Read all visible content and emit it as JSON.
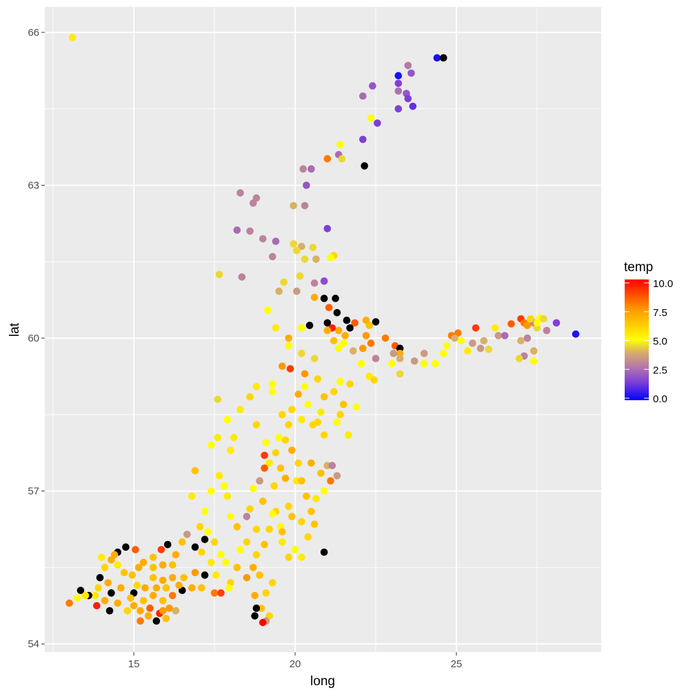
{
  "chart_data": {
    "type": "scatter",
    "xlabel": "long",
    "ylabel": "lat",
    "xlim": [
      12.24,
      29.49
    ],
    "ylim": [
      53.84,
      66.5
    ],
    "x_ticks": [
      15,
      20,
      25
    ],
    "x_tick_labels": [
      "15",
      "20",
      "25"
    ],
    "y_ticks": [
      54,
      57,
      60,
      63,
      66
    ],
    "y_tick_labels": [
      "54",
      "57",
      "60",
      "63",
      "66"
    ],
    "grid": true,
    "legend": {
      "title": "temp",
      "placement": "right",
      "range": [
        0,
        10
      ],
      "ticks": [
        0,
        2.5,
        5,
        7.5,
        10
      ],
      "tick_labels": [
        "0.0",
        "2.5",
        "5.0",
        "7.5",
        "10.0"
      ],
      "color_stops": [
        {
          "value": 0,
          "color": "#0000FF"
        },
        {
          "value": 1.5,
          "color": "#7F3FD6"
        },
        {
          "value": 2.8,
          "color": "#B57AA8"
        },
        {
          "value": 4,
          "color": "#D8B066"
        },
        {
          "value": 5,
          "color": "#FFFF00"
        },
        {
          "value": 7.5,
          "color": "#FF9900"
        },
        {
          "value": 10,
          "color": "#FF0000"
        }
      ],
      "na_color": "#000000"
    },
    "point_fields": [
      "long",
      "lat",
      "temp"
    ],
    "points": [
      [
        13.1,
        65.9,
        5.5
      ],
      [
        24.4,
        65.5,
        0.3
      ],
      [
        24.6,
        65.5,
        null
      ],
      [
        23.5,
        65.35,
        2.8
      ],
      [
        23.6,
        65.2,
        2
      ],
      [
        23.2,
        65.15,
        0.3
      ],
      [
        23.2,
        65.0,
        1.5
      ],
      [
        23.2,
        64.85,
        2.6
      ],
      [
        23.45,
        64.8,
        2
      ],
      [
        23.5,
        64.7,
        1.5
      ],
      [
        23.65,
        64.55,
        1.2
      ],
      [
        23.2,
        64.5,
        1.5
      ],
      [
        22.4,
        64.95,
        2
      ],
      [
        22.1,
        64.75,
        2.5
      ],
      [
        22.35,
        64.32,
        5
      ],
      [
        22.55,
        64.22,
        1.5
      ],
      [
        22.1,
        63.9,
        1.5
      ],
      [
        21.4,
        63.8,
        5
      ],
      [
        21.35,
        63.6,
        2.5
      ],
      [
        21.45,
        63.52,
        4.5
      ],
      [
        21.0,
        63.52,
        8
      ],
      [
        22.15,
        63.38,
        null
      ],
      [
        20.25,
        63.32,
        3
      ],
      [
        20.5,
        63.32,
        2.5
      ],
      [
        20.35,
        63.0,
        2
      ],
      [
        18.3,
        62.85,
        3
      ],
      [
        18.8,
        62.75,
        3
      ],
      [
        18.7,
        62.65,
        3
      ],
      [
        19.95,
        62.6,
        4
      ],
      [
        20.3,
        62.6,
        3
      ],
      [
        18.2,
        62.12,
        2.5
      ],
      [
        18.6,
        62.1,
        3
      ],
      [
        21.0,
        62.15,
        1.5
      ],
      [
        19.0,
        61.95,
        3
      ],
      [
        19.4,
        61.9,
        2.5
      ],
      [
        19.95,
        61.85,
        4.5
      ],
      [
        20.2,
        61.8,
        4
      ],
      [
        20.55,
        61.78,
        4.5
      ],
      [
        20.05,
        61.72,
        4.5
      ],
      [
        20.3,
        61.55,
        4.5
      ],
      [
        20.65,
        61.55,
        4
      ],
      [
        21.2,
        61.62,
        6
      ],
      [
        21.1,
        61.58,
        5
      ],
      [
        19.3,
        61.6,
        3
      ],
      [
        17.65,
        61.25,
        4.5
      ],
      [
        18.35,
        61.2,
        3
      ],
      [
        20.15,
        61.22,
        4.5
      ],
      [
        19.65,
        61.1,
        4.5
      ],
      [
        19.5,
        60.92,
        4
      ],
      [
        20.05,
        60.92,
        3.5
      ],
      [
        20.6,
        61.08,
        3
      ],
      [
        20.9,
        61.12,
        1.8
      ],
      [
        20.6,
        60.8,
        7
      ],
      [
        20.9,
        60.78,
        null
      ],
      [
        21.05,
        60.6,
        8.5
      ],
      [
        21.25,
        60.78,
        null
      ],
      [
        21.3,
        60.5,
        null
      ],
      [
        21.0,
        60.3,
        null
      ],
      [
        21.15,
        60.2,
        9.5
      ],
      [
        20.45,
        60.25,
        null
      ],
      [
        21.6,
        60.35,
        null
      ],
      [
        21.85,
        60.3,
        8.5
      ],
      [
        22.5,
        60.32,
        null
      ],
      [
        21.7,
        60.2,
        null
      ],
      [
        21.35,
        60.15,
        7
      ],
      [
        21.5,
        59.9,
        5
      ],
      [
        21.0,
        60.15,
        7
      ],
      [
        21.2,
        59.95,
        6.5
      ],
      [
        21.55,
        60.05,
        7
      ],
      [
        22.2,
        60.35,
        7
      ],
      [
        22.3,
        60.25,
        6.5
      ],
      [
        22.2,
        60.05,
        7.5
      ],
      [
        22.35,
        59.9,
        8
      ],
      [
        22.1,
        59.8,
        7.5
      ],
      [
        22.5,
        59.6,
        3
      ],
      [
        22.8,
        60.0,
        8
      ],
      [
        23.1,
        59.85,
        8.5
      ],
      [
        23.25,
        59.8,
        null
      ],
      [
        23.25,
        59.7,
        7
      ],
      [
        23.05,
        59.7,
        3.5
      ],
      [
        23.25,
        59.6,
        4
      ],
      [
        23.0,
        59.5,
        5
      ],
      [
        23.7,
        59.55,
        3.5
      ],
      [
        24.0,
        59.7,
        3.5
      ],
      [
        24.35,
        59.5,
        5
      ],
      [
        24.0,
        59.5,
        5
      ],
      [
        23.25,
        59.3,
        4.5
      ],
      [
        24.6,
        59.7,
        5
      ],
      [
        24.7,
        59.85,
        5
      ],
      [
        24.85,
        60.05,
        8
      ],
      [
        25.05,
        60.1,
        8
      ],
      [
        24.95,
        60.0,
        4
      ],
      [
        25.15,
        59.95,
        5
      ],
      [
        25.35,
        59.75,
        5.5
      ],
      [
        25.6,
        60.2,
        9
      ],
      [
        25.5,
        59.9,
        3.5
      ],
      [
        25.75,
        59.8,
        3.5
      ],
      [
        25.85,
        59.95,
        4
      ],
      [
        26.0,
        59.78,
        4.5
      ],
      [
        26.2,
        60.2,
        5.5
      ],
      [
        26.3,
        60.05,
        3.5
      ],
      [
        26.5,
        60.05,
        2.5
      ],
      [
        26.7,
        60.28,
        8.5
      ],
      [
        27.0,
        60.38,
        9
      ],
      [
        27.1,
        60.3,
        8
      ],
      [
        27.2,
        60.25,
        7.5
      ],
      [
        27.4,
        60.3,
        3
      ],
      [
        27.3,
        60.38,
        6
      ],
      [
        27.5,
        60.2,
        4.5
      ],
      [
        27.6,
        60.4,
        5
      ],
      [
        27.5,
        60.3,
        5
      ],
      [
        27.7,
        60.38,
        4.5
      ],
      [
        27.8,
        60.15,
        3
      ],
      [
        27.2,
        60.0,
        3
      ],
      [
        27.0,
        59.95,
        4
      ],
      [
        27.4,
        59.75,
        4
      ],
      [
        27.4,
        59.55,
        5
      ],
      [
        27.1,
        59.65,
        3
      ],
      [
        26.95,
        59.6,
        4.5
      ],
      [
        28.1,
        60.3,
        1.5
      ],
      [
        28.7,
        60.08,
        0.4
      ],
      [
        19.8,
        60.0,
        7
      ],
      [
        19.4,
        60.2,
        5.5
      ],
      [
        20.2,
        60.2,
        5
      ],
      [
        19.15,
        60.55,
        5
      ],
      [
        19.8,
        59.85,
        5
      ],
      [
        20.2,
        59.7,
        4.5
      ],
      [
        19.6,
        59.45,
        7.5
      ],
      [
        19.85,
        59.4,
        9
      ],
      [
        20.3,
        59.3,
        7.5
      ],
      [
        20.6,
        59.6,
        4.5
      ],
      [
        21.35,
        59.8,
        5
      ],
      [
        21.8,
        59.75,
        4
      ],
      [
        22.3,
        59.25,
        5.5
      ],
      [
        22.05,
        59.5,
        5
      ],
      [
        22.45,
        59.18,
        6
      ],
      [
        21.7,
        59.1,
        6
      ],
      [
        21.4,
        59.15,
        5
      ],
      [
        20.3,
        59.05,
        5
      ],
      [
        20.7,
        59.2,
        6
      ],
      [
        20.1,
        58.9,
        7
      ],
      [
        20.9,
        58.85,
        6.5
      ],
      [
        21.2,
        58.95,
        6
      ],
      [
        21.5,
        58.7,
        6.5
      ],
      [
        21.9,
        58.65,
        5
      ],
      [
        19.3,
        59.1,
        5
      ],
      [
        18.8,
        59.05,
        5.5
      ],
      [
        18.6,
        58.85,
        6
      ],
      [
        17.6,
        58.8,
        4.5
      ],
      [
        18.3,
        58.6,
        5.5
      ],
      [
        18.8,
        58.3,
        6
      ],
      [
        17.9,
        58.4,
        5
      ],
      [
        17.6,
        58.05,
        5.5
      ],
      [
        18.0,
        57.8,
        5.5
      ],
      [
        17.4,
        57.9,
        5
      ],
      [
        18.1,
        58.05,
        5.5
      ],
      [
        19.5,
        58.05,
        5
      ],
      [
        19.8,
        58.3,
        6
      ],
      [
        19.6,
        58.5,
        6
      ],
      [
        20.2,
        58.4,
        5.5
      ],
      [
        20.55,
        58.3,
        6
      ],
      [
        20.8,
        58.55,
        5.5
      ],
      [
        21.3,
        58.35,
        5
      ],
      [
        21.4,
        58.5,
        6
      ],
      [
        21.65,
        58.1,
        5.5
      ],
      [
        20.9,
        58.1,
        6
      ],
      [
        19.1,
        57.95,
        5
      ],
      [
        19.4,
        57.75,
        6
      ],
      [
        19.05,
        57.7,
        9
      ],
      [
        19.2,
        57.55,
        5.5
      ],
      [
        19.55,
        57.45,
        6.5
      ],
      [
        20.1,
        57.55,
        6
      ],
      [
        20.5,
        57.55,
        7
      ],
      [
        20.8,
        57.35,
        6.5
      ],
      [
        21.0,
        57.5,
        4
      ],
      [
        21.15,
        57.5,
        3
      ],
      [
        21.3,
        57.3,
        3.5
      ],
      [
        21.1,
        57.2,
        8
      ],
      [
        20.9,
        57.0,
        5
      ],
      [
        20.65,
        56.85,
        5.5
      ],
      [
        20.35,
        56.9,
        6.5
      ],
      [
        20.05,
        57.2,
        5.5
      ],
      [
        19.7,
        57.25,
        7
      ],
      [
        19.35,
        57.1,
        6
      ],
      [
        19.05,
        57.45,
        8.5
      ],
      [
        18.9,
        57.2,
        3.5
      ],
      [
        18.7,
        57.05,
        5
      ],
      [
        18.5,
        56.5,
        3
      ],
      [
        18.8,
        56.25,
        6
      ],
      [
        19.2,
        56.25,
        6
      ],
      [
        19.55,
        56.3,
        5
      ],
      [
        19.9,
        56.5,
        6.5
      ],
      [
        20.2,
        56.4,
        6
      ],
      [
        20.4,
        56.1,
        6
      ],
      [
        20.0,
        55.85,
        5
      ],
      [
        20.2,
        55.7,
        5.5
      ],
      [
        20.9,
        55.8,
        null
      ],
      [
        19.6,
        56.0,
        5.5
      ],
      [
        19.05,
        55.95,
        6.5
      ],
      [
        18.8,
        55.75,
        6
      ],
      [
        18.7,
        55.5,
        7
      ],
      [
        18.9,
        55.35,
        6.5
      ],
      [
        19.3,
        55.2,
        6
      ],
      [
        19.1,
        55.0,
        6
      ],
      [
        18.75,
        54.95,
        7
      ],
      [
        18.95,
        54.7,
        6.5
      ],
      [
        19.2,
        54.55,
        6
      ],
      [
        19.1,
        54.45,
        3.5
      ],
      [
        19.0,
        54.42,
        10
      ],
      [
        18.75,
        54.55,
        null
      ],
      [
        18.8,
        54.7,
        null
      ],
      [
        18.5,
        55.3,
        7.5
      ],
      [
        18.2,
        55.5,
        6.5
      ],
      [
        18.0,
        55.2,
        6
      ],
      [
        17.85,
        55.6,
        5
      ],
      [
        18.3,
        55.85,
        5
      ],
      [
        18.5,
        56.0,
        6
      ],
      [
        18.2,
        56.3,
        6.5
      ],
      [
        18.0,
        56.5,
        5
      ],
      [
        17.9,
        56.9,
        5.5
      ],
      [
        17.8,
        57.1,
        5
      ],
      [
        17.65,
        57.3,
        5.5
      ],
      [
        17.4,
        57.0,
        5
      ],
      [
        17.2,
        56.6,
        5
      ],
      [
        17.05,
        56.3,
        6
      ],
      [
        16.9,
        57.4,
        6.5
      ],
      [
        16.8,
        56.9,
        5.5
      ],
      [
        17.3,
        56.2,
        5
      ],
      [
        17.5,
        56.0,
        6
      ],
      [
        17.7,
        55.75,
        5
      ],
      [
        17.4,
        55.6,
        5.5
      ],
      [
        17.1,
        55.8,
        6
      ],
      [
        16.9,
        55.9,
        null
      ],
      [
        17.2,
        56.05,
        null
      ],
      [
        16.65,
        56.15,
        3.5
      ],
      [
        16.5,
        56.0,
        6.5
      ],
      [
        16.3,
        55.75,
        7
      ],
      [
        16.05,
        55.95,
        null
      ],
      [
        15.85,
        55.85,
        9
      ],
      [
        15.6,
        55.7,
        6.5
      ],
      [
        15.3,
        55.6,
        7
      ],
      [
        15.05,
        55.85,
        8.5
      ],
      [
        14.75,
        55.9,
        null
      ],
      [
        14.5,
        55.8,
        null
      ],
      [
        14.3,
        55.65,
        7
      ],
      [
        14.1,
        55.5,
        6
      ],
      [
        13.95,
        55.3,
        null
      ],
      [
        14.2,
        55.2,
        7
      ],
      [
        14.3,
        55.0,
        null
      ],
      [
        13.9,
        55.1,
        6
      ],
      [
        13.8,
        54.95,
        5.5
      ],
      [
        13.6,
        54.95,
        null
      ],
      [
        13.35,
        55.05,
        null
      ],
      [
        13.25,
        54.9,
        5
      ],
      [
        13.0,
        54.8,
        8
      ],
      [
        13.5,
        54.95,
        5.5
      ],
      [
        13.85,
        54.75,
        9.5
      ],
      [
        14.1,
        54.85,
        7
      ],
      [
        14.25,
        54.65,
        null
      ],
      [
        14.5,
        54.8,
        7
      ],
      [
        14.8,
        54.65,
        6
      ],
      [
        15.0,
        54.75,
        7
      ],
      [
        15.2,
        54.45,
        8
      ],
      [
        15.45,
        54.55,
        7
      ],
      [
        15.7,
        54.45,
        null
      ],
      [
        15.8,
        54.6,
        9.5
      ],
      [
        16.0,
        54.5,
        6.5
      ],
      [
        16.3,
        54.65,
        4
      ],
      [
        16.2,
        54.95,
        8
      ],
      [
        16.5,
        55.05,
        null
      ],
      [
        16.8,
        55.1,
        7
      ],
      [
        17.1,
        55.1,
        6.5
      ],
      [
        17.5,
        55.0,
        8
      ],
      [
        17.7,
        55.0,
        9
      ],
      [
        17.95,
        55.1,
        5
      ],
      [
        17.55,
        55.35,
        5.5
      ],
      [
        17.2,
        55.35,
        null
      ],
      [
        16.9,
        55.4,
        7.5
      ],
      [
        16.55,
        55.3,
        6.5
      ],
      [
        16.2,
        55.3,
        7
      ],
      [
        15.9,
        55.25,
        7
      ],
      [
        15.6,
        55.3,
        6.5
      ],
      [
        15.35,
        55.1,
        7
      ],
      [
        15.1,
        55.15,
        6
      ],
      [
        14.95,
        55.35,
        6.5
      ],
      [
        15.15,
        55.5,
        7
      ],
      [
        15.6,
        55.5,
        6.5
      ],
      [
        15.9,
        55.55,
        7
      ],
      [
        16.2,
        55.55,
        6.5
      ],
      [
        14.7,
        55.4,
        6.5
      ],
      [
        14.5,
        55.55,
        5.5
      ],
      [
        14.6,
        55.1,
        7
      ],
      [
        15.0,
        55.0,
        null
      ],
      [
        15.3,
        54.85,
        6.5
      ],
      [
        15.6,
        54.95,
        7
      ],
      [
        15.9,
        54.85,
        6.5
      ],
      [
        16.1,
        54.7,
        7.5
      ],
      [
        15.5,
        54.7,
        8.5
      ],
      [
        14.9,
        54.9,
        6.5
      ],
      [
        15.7,
        55.1,
        7
      ],
      [
        16.0,
        55.1,
        6.5
      ],
      [
        16.4,
        55.15,
        7
      ],
      [
        14.0,
        55.7,
        5.5
      ],
      [
        14.4,
        55.75,
        7
      ],
      [
        15.9,
        54.65,
        7.5
      ],
      [
        15.2,
        54.65,
        7
      ],
      [
        19.3,
        58.95,
        5
      ],
      [
        19.9,
        58.6,
        6
      ],
      [
        20.4,
        58.7,
        5
      ],
      [
        20.7,
        58.35,
        6
      ],
      [
        19.7,
        58.0,
        6
      ],
      [
        19.9,
        57.8,
        7
      ],
      [
        20.2,
        57.2,
        6.5
      ],
      [
        20.5,
        56.6,
        6.5
      ],
      [
        19.8,
        56.7,
        6
      ],
      [
        19.4,
        56.6,
        6
      ],
      [
        19.0,
        56.8,
        6.5
      ],
      [
        19.3,
        56.55,
        5
      ],
      [
        18.6,
        56.65,
        6
      ],
      [
        19.6,
        56.2,
        6.5
      ],
      [
        20.6,
        56.35,
        6.5
      ],
      [
        19.8,
        55.7,
        6
      ]
    ]
  }
}
